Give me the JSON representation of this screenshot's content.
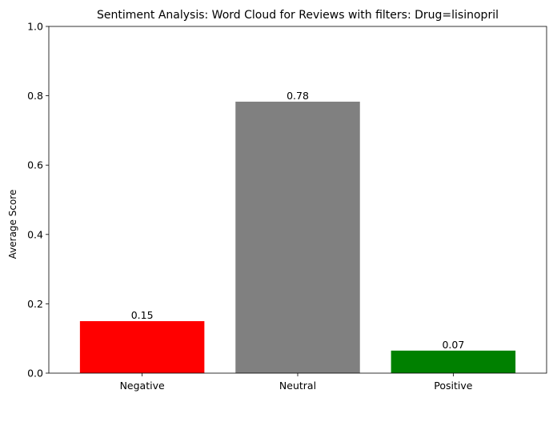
{
  "chart_data": {
    "type": "bar",
    "title": "Sentiment Analysis: Word Cloud for Reviews with filters: Drug=lisinopril",
    "xlabel": "",
    "ylabel": "Average Score",
    "categories": [
      "Negative",
      "Neutral",
      "Positive"
    ],
    "values": [
      0.15,
      0.783,
      0.065
    ],
    "value_labels": [
      "0.15",
      "0.78",
      "0.07"
    ],
    "colors": [
      "#ff0000",
      "#808080",
      "#008000"
    ],
    "ylim": [
      0,
      1.0
    ],
    "yticks": [
      0.0,
      0.2,
      0.4,
      0.6,
      0.8,
      1.0
    ],
    "ytick_labels": [
      "0.0",
      "0.2",
      "0.4",
      "0.6",
      "0.8",
      "1.0"
    ],
    "grid": false,
    "legend": "none"
  }
}
